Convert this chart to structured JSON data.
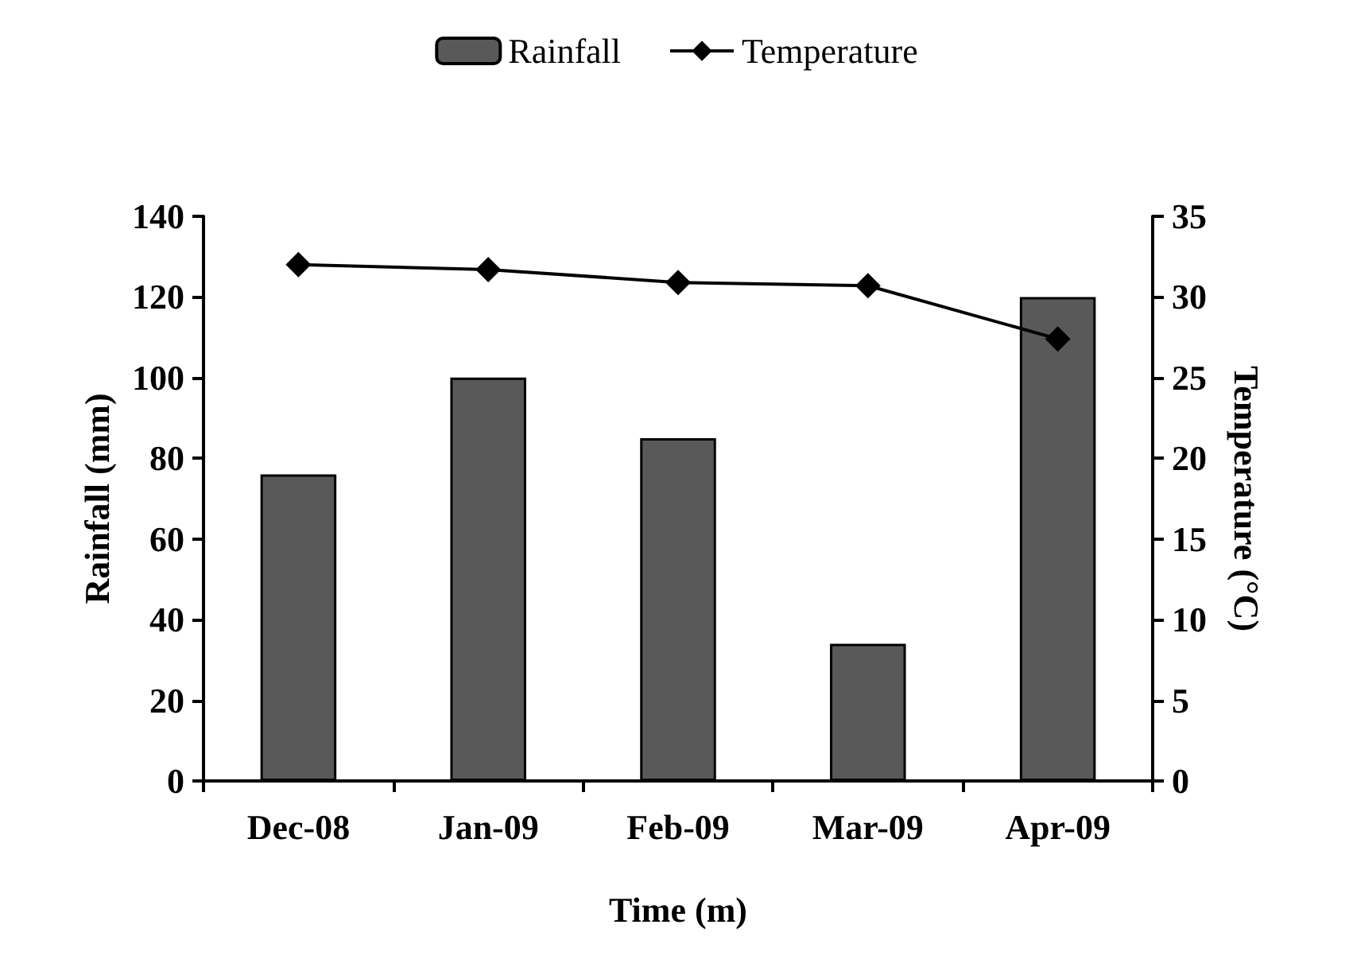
{
  "chart_data": {
    "type": "bar",
    "xlabel": "Time (m)",
    "ylabel": "Rainfall (mm)",
    "y2label": "Temperature (°C)",
    "categories": [
      "Dec-08",
      "Jan-09",
      "Feb-09",
      "Mar-09",
      "Apr-09"
    ],
    "series": [
      {
        "name": "Rainfall",
        "color": "#595959",
        "values": [
          76,
          100,
          85,
          34,
          120
        ]
      },
      {
        "name": "Temperature",
        "type": "line",
        "axis": "y2",
        "color": "#000000",
        "marker": "diamond",
        "values": [
          32.0,
          31.7,
          30.9,
          30.7,
          27.4
        ]
      }
    ],
    "ylim": [
      0,
      140
    ],
    "yticks": [
      0,
      20,
      40,
      60,
      80,
      100,
      120,
      140
    ],
    "y2lim": [
      0,
      35
    ],
    "y2ticks": [
      0,
      5,
      10,
      15,
      20,
      25,
      30,
      35
    ],
    "grid": false,
    "legend": "top"
  }
}
